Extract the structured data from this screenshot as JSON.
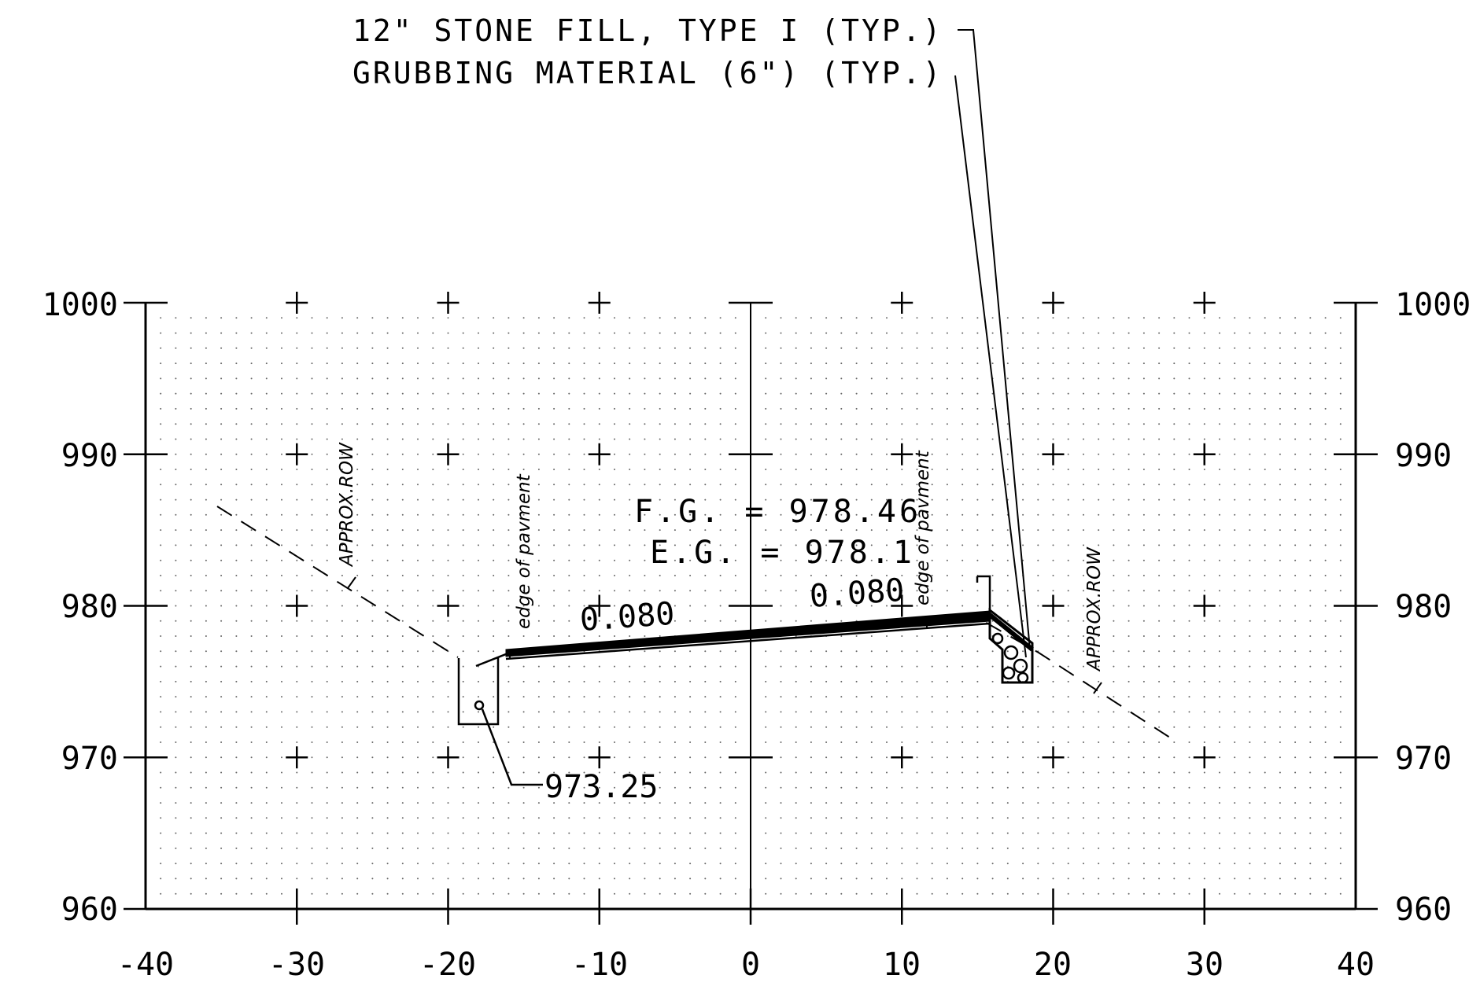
{
  "notes": {
    "stone_fill": "12\" STONE FILL, TYPE I (TYP.)",
    "grubbing": "GRUBBING MATERIAL (6\") (TYP.)"
  },
  "grades": {
    "fg": "F.G. = 978.46",
    "eg": "E.G. = 978.1"
  },
  "slopes": {
    "left": "0.080",
    "right": "0.080"
  },
  "ditch_elevation": "973.25",
  "labels": {
    "row_left": "APPROX.ROW",
    "row_right": "APPROX.ROW",
    "edge_left": "edge of pavment",
    "edge_right": "edge of pavment"
  },
  "axes": {
    "x_ticks": [
      "-40",
      "-30",
      "-20",
      "-10",
      "0",
      "10",
      "20",
      "30",
      "40"
    ],
    "y_ticks": [
      "1000",
      "990",
      "980",
      "970",
      "960"
    ]
  }
}
